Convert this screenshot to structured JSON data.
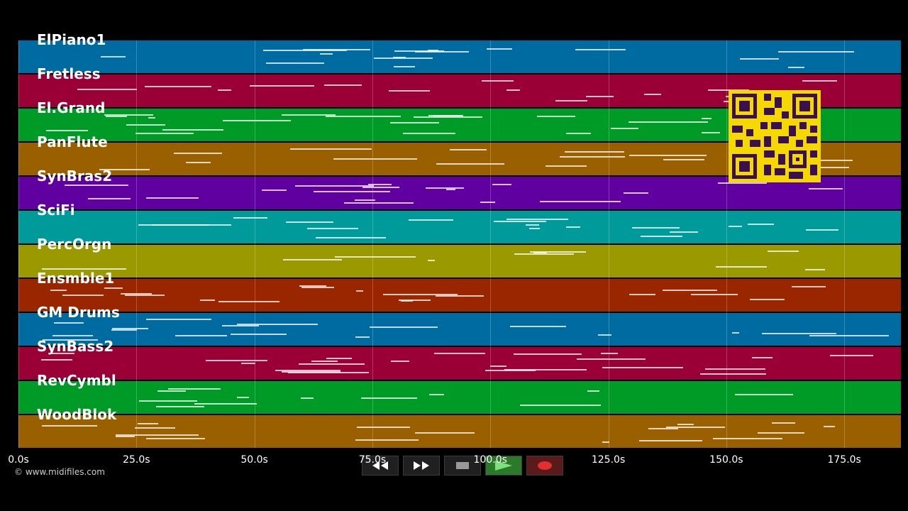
{
  "tracks": [
    {
      "name": "ElPiano1",
      "color": "#006ba1"
    },
    {
      "name": "Fretless",
      "color": "#9a0036"
    },
    {
      "name": "El.Grand",
      "color": "#009a26"
    },
    {
      "name": "PanFlute",
      "color": "#9a6000"
    },
    {
      "name": "SynBras2",
      "color": "#6000a0"
    },
    {
      "name": "SciFi",
      "color": "#009a9a"
    },
    {
      "name": "PercOrgn",
      "color": "#9a9a00"
    },
    {
      "name": "Ensmble1",
      "color": "#9a2600"
    },
    {
      "name": "GM Drums",
      "color": "#006ba1"
    },
    {
      "name": "SynBass2",
      "color": "#9a0036"
    },
    {
      "name": "RevCymbl",
      "color": "#009a26"
    },
    {
      "name": "WoodBlok",
      "color": "#9a6000"
    }
  ],
  "timeline": {
    "ticks": [
      {
        "label": "0.0s",
        "seconds": 0
      },
      {
        "label": "25.0s",
        "seconds": 25
      },
      {
        "label": "50.0s",
        "seconds": 50
      },
      {
        "label": "75.0s",
        "seconds": 75
      },
      {
        "label": "100.0s",
        "seconds": 100
      },
      {
        "label": "125.0s",
        "seconds": 125
      },
      {
        "label": "150.0s",
        "seconds": 150
      },
      {
        "label": "175.0s",
        "seconds": 175
      }
    ],
    "total_seconds": 187
  },
  "copyright": "© www.midifiles.com",
  "controls": {
    "rewind_icon": "rewind-icon",
    "forward_icon": "fast-forward-icon",
    "stop_icon": "stop-icon",
    "play_icon": "play-icon",
    "record_icon": "record-icon"
  }
}
